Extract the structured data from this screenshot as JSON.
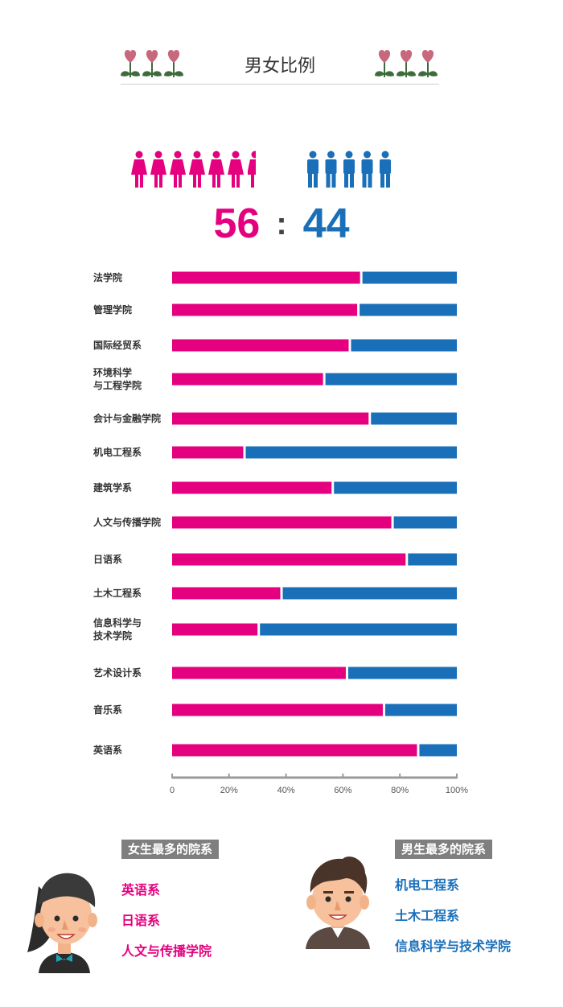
{
  "header": {
    "title": "男女比例"
  },
  "ratio": {
    "female": "56",
    "colon": ":",
    "male": "44"
  },
  "colors": {
    "female": "#e4007f",
    "male": "#1a6fb9",
    "axis": "#9a9a9a"
  },
  "icons": {
    "women": "woman-icon",
    "men": "man-icon",
    "flowers": "heart-flower-icon"
  },
  "chart_data": {
    "type": "bar",
    "orientation": "horizontal",
    "stacked": "percent",
    "categories": [
      "法学院",
      "管理学院",
      "国际经贸系",
      "环境科学\n与工程学院",
      "会计与金融学院",
      "机电工程系",
      "建筑学系",
      "人文与传播学院",
      "日语系",
      "土木工程系",
      "信息科学与\n技术学院",
      "艺术设计系",
      "音乐系",
      "英语系"
    ],
    "series": [
      {
        "color": "#e4007f",
        "values": [
          66,
          65,
          62,
          53,
          69,
          25,
          56,
          77,
          82,
          38,
          30,
          61,
          74,
          86
        ]
      },
      {
        "color": "#1a6fb9",
        "values": [
          34,
          35,
          38,
          47,
          31,
          75,
          44,
          23,
          18,
          62,
          70,
          39,
          26,
          14
        ]
      }
    ],
    "xticks": [
      "0",
      "20%",
      "40%",
      "60%",
      "80%",
      "100%"
    ],
    "xlim": [
      0,
      100
    ],
    "grid": false,
    "legend": "none"
  },
  "female_card": {
    "title": "女生最多的院系",
    "items": [
      "英语系",
      "日语系",
      "人文与传播学院"
    ]
  },
  "male_card": {
    "title": "男生最多的院系",
    "items": [
      "机电工程系",
      "土木工程系",
      "信息科学与技术学院"
    ]
  }
}
